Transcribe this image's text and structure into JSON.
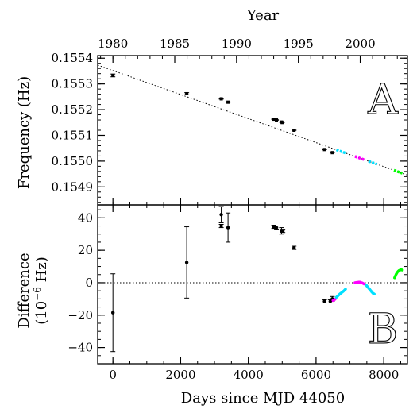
{
  "chart_data": [
    {
      "panel_label": "A",
      "type": "scatter",
      "title": "",
      "xlabel": "Days since MJD 44050",
      "ylabel": "Frequency (Hz)",
      "top_axis_label": "Year",
      "top_axis_ticks": [
        "1980",
        "1985",
        "1990",
        "1995",
        "2000"
      ],
      "top_axis_tick_positions": [
        {
          "label": "1980",
          "x": 0
        },
        {
          "label": "1985",
          "x": 1826
        },
        {
          "label": "1990",
          "x": 3652
        },
        {
          "label": "1995",
          "x": 5478
        },
        {
          "label": "2000",
          "x": 7305
        }
      ],
      "xlim": [
        -450,
        8700
      ],
      "ylim": [
        0.15483,
        0.15541
      ],
      "yticks": [
        "0.1549",
        "0.1550",
        "0.1551",
        "0.1552",
        "0.1553",
        "0.1554"
      ],
      "grid": false,
      "points": [
        {
          "x": 0,
          "y": 0.155333,
          "err": 5.5e-06
        },
        {
          "x": 2180,
          "y": 0.155262,
          "err": 4e-06
        },
        {
          "x": 3200,
          "y": 0.155242,
          "err": 1.2e-06
        },
        {
          "x": 3400,
          "y": 0.155229,
          "err": 1.2e-06
        },
        {
          "x": 4750,
          "y": 0.155163,
          "err": 8e-07
        },
        {
          "x": 4830,
          "y": 0.15516,
          "err": 8e-07
        },
        {
          "x": 4980,
          "y": 0.155152,
          "err": 8e-07
        },
        {
          "x": 5000,
          "y": 0.15515,
          "err": 8e-07
        },
        {
          "x": 5350,
          "y": 0.15512,
          "err": 8e-07
        },
        {
          "x": 6250,
          "y": 0.155045,
          "err": 3e-07
        },
        {
          "x": 6480,
          "y": 0.155033,
          "err": 3e-07
        }
      ],
      "trend_line": {
        "x": [
          -450,
          8700
        ],
        "y": [
          0.155373,
          0.154946
        ]
      },
      "colored_segments": [
        {
          "color": "#00e0ff",
          "x": [
            6600,
            6900
          ]
        },
        {
          "color": "#ff00ff",
          "x": [
            7150,
            7450
          ]
        },
        {
          "color": "#00e0ff",
          "x": [
            7550,
            7800
          ]
        },
        {
          "color": "#00ff00",
          "x": [
            8300,
            8550
          ]
        }
      ]
    },
    {
      "panel_label": "B",
      "type": "scatter",
      "title": "",
      "xlabel": "Days since MJD 44050",
      "ylabel": "Difference",
      "ylabel2": "(10",
      "ylabel2_exp": "−6",
      "ylabel2_tail": " Hz)",
      "xlim": [
        -450,
        8700
      ],
      "xticks": [
        "0",
        "2000",
        "4000",
        "6000",
        "8000"
      ],
      "ylim": [
        -50,
        48
      ],
      "yticks": [
        "−40",
        "−20",
        "0",
        "20",
        "40"
      ],
      "zero_line": true,
      "grid": false,
      "points": [
        {
          "x": 0,
          "y": -18.5,
          "err": 24
        },
        {
          "x": 2180,
          "y": 12.5,
          "err": 22
        },
        {
          "x": 3200,
          "y": 42,
          "err": 5
        },
        {
          "x": 3200,
          "y": 35,
          "err": 1
        },
        {
          "x": 3400,
          "y": 34,
          "err": 9
        },
        {
          "x": 4750,
          "y": 34.5,
          "err": 1
        },
        {
          "x": 4830,
          "y": 34,
          "err": 1
        },
        {
          "x": 4980,
          "y": 32,
          "err": 2
        },
        {
          "x": 5020,
          "y": 32,
          "err": 1
        },
        {
          "x": 5350,
          "y": 21.5,
          "err": 1
        },
        {
          "x": 6250,
          "y": -11.5,
          "err": 1
        },
        {
          "x": 6420,
          "y": -11.5,
          "err": 1
        },
        {
          "x": 6480,
          "y": -10,
          "err": 1.5
        }
      ],
      "colored_segments": [
        {
          "color": "#ff00ff",
          "points": [
            [
              6500,
              -11
            ],
            [
              6540,
              -10.5
            ],
            [
              6580,
              -10
            ]
          ]
        },
        {
          "color": "#00e0ff",
          "points": [
            [
              6600,
              -9
            ],
            [
              6650,
              -8
            ],
            [
              6700,
              -7
            ],
            [
              6760,
              -6
            ],
            [
              6820,
              -5
            ],
            [
              6870,
              -4
            ]
          ]
        },
        {
          "color": "#ff00ff",
          "points": [
            [
              7150,
              0
            ],
            [
              7200,
              0.2
            ],
            [
              7250,
              0.3
            ],
            [
              7300,
              0.3
            ],
            [
              7350,
              0
            ],
            [
              7400,
              -0.5
            ],
            [
              7440,
              -1
            ]
          ]
        },
        {
          "color": "#00e0ff",
          "points": [
            [
              7480,
              -1.5
            ],
            [
              7520,
              -2.5
            ],
            [
              7560,
              -3.5
            ],
            [
              7600,
              -4.5
            ],
            [
              7640,
              -5.5
            ],
            [
              7680,
              -6.5
            ],
            [
              7720,
              -7
            ]
          ]
        },
        {
          "color": "#00ff00",
          "points": [
            [
              8320,
              3
            ],
            [
              8360,
              5
            ],
            [
              8400,
              6.5
            ],
            [
              8450,
              7.5
            ],
            [
              8500,
              8
            ],
            [
              8550,
              7.8
            ]
          ]
        }
      ]
    }
  ]
}
